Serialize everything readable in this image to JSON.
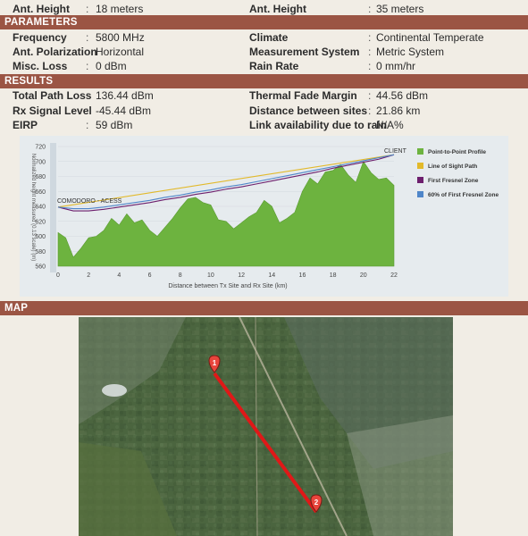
{
  "antenna": {
    "left": {
      "label": "Ant. Height",
      "value": "18 meters"
    },
    "right": {
      "label": "Ant. Height",
      "value": "35 meters"
    }
  },
  "parameters": {
    "header": "PARAMETERS",
    "rows": [
      {
        "l_label": "Frequency",
        "l_value": "5800 MHz",
        "r_label": "Climate",
        "r_value": "Continental Temperate"
      },
      {
        "l_label": "Ant. Polarization",
        "l_value": "Horizontal",
        "r_label": "Measurement System",
        "r_value": "Metric System"
      },
      {
        "l_label": "Misc. Loss",
        "l_value": "0 dBm",
        "r_label": "Rain Rate",
        "r_value": "0 mm/hr"
      }
    ]
  },
  "results": {
    "header": "RESULTS",
    "rows": [
      {
        "l_label": "Total Path Loss",
        "l_value": "136.44 dBm",
        "r_label": "Thermal Fade Margin",
        "r_value": "44.56 dBm"
      },
      {
        "l_label": "Rx Signal Level",
        "l_value": "-45.44 dBm",
        "r_label": "Distance between sites",
        "r_value": "21.86 km"
      },
      {
        "l_label": "EIRP",
        "l_value": "59 dBm",
        "r_label": "Link availability due to rain",
        "r_value": "N/A%"
      }
    ]
  },
  "colon": ":",
  "map": {
    "header": "MAP",
    "marker_1": "1",
    "marker_2": "2",
    "colors": {
      "link": "#e01818",
      "marker": "#e8453c"
    }
  },
  "chart_data": {
    "type": "area",
    "ylabel": "Normalized height measured (0.13 scale) (m)",
    "xlabel": "Distance between Tx Site and Rx Site (km)",
    "xlim": [
      0,
      22
    ],
    "ylim": [
      560,
      720
    ],
    "x_ticks": [
      "0",
      "2",
      "4",
      "6",
      "8",
      "10",
      "12",
      "14",
      "16",
      "18",
      "20",
      "22"
    ],
    "y_ticks": [
      "720",
      "700",
      "680",
      "660",
      "640",
      "620",
      "600",
      "580",
      "560"
    ],
    "site_labels": {
      "start": "COMODORO - ACESS",
      "end": "CLIENT"
    },
    "legend_position": "right",
    "series": [
      {
        "name": "Point-to-Point Profile",
        "color": "#6db33f",
        "x": [
          0,
          0.5,
          1,
          1.5,
          2,
          2.5,
          3,
          3.5,
          4,
          4.5,
          5,
          5.5,
          6,
          6.5,
          7,
          7.5,
          8,
          8.5,
          9,
          9.5,
          10,
          10.5,
          11,
          11.5,
          12,
          12.5,
          13,
          13.5,
          14,
          14.5,
          15,
          15.5,
          16,
          16.5,
          17,
          17.5,
          18,
          18.5,
          19,
          19.5,
          20,
          20.5,
          21,
          21.5,
          22
        ],
        "y": [
          605,
          598,
          572,
          584,
          598,
          600,
          608,
          624,
          615,
          630,
          618,
          622,
          608,
          600,
          612,
          624,
          638,
          650,
          652,
          645,
          642,
          622,
          620,
          610,
          618,
          626,
          632,
          648,
          640,
          618,
          624,
          632,
          660,
          678,
          670,
          686,
          688,
          696,
          682,
          672,
          700,
          685,
          676,
          678,
          668
        ]
      },
      {
        "name": "Line of Sight Path",
        "color": "#e2b92a",
        "x": [
          0,
          22
        ],
        "y": [
          639,
          709
        ]
      },
      {
        "name": "First Fresnel Zone",
        "color": "#6d1f6d",
        "x": [
          0,
          1,
          2,
          3,
          4,
          5,
          6,
          7,
          8,
          9,
          10,
          11,
          12,
          13,
          14,
          15,
          16,
          17,
          18,
          19,
          20,
          21,
          22
        ],
        "y": [
          639,
          634,
          634,
          636,
          639,
          642,
          645,
          649,
          652,
          656,
          659,
          663,
          666,
          670,
          674,
          678,
          682,
          686,
          691,
          695,
          699,
          703,
          709
        ]
      },
      {
        "name": "60% of First Fresnel Zone",
        "color": "#4f86c9",
        "x": [
          0,
          1,
          2,
          3,
          4,
          5,
          6,
          7,
          8,
          9,
          10,
          11,
          12,
          13,
          14,
          15,
          16,
          17,
          18,
          19,
          20,
          21,
          22
        ],
        "y": [
          639,
          637,
          637,
          639,
          642,
          645,
          648,
          652,
          655,
          659,
          662,
          666,
          669,
          673,
          677,
          681,
          685,
          689,
          693,
          697,
          701,
          705,
          709
        ]
      }
    ]
  }
}
